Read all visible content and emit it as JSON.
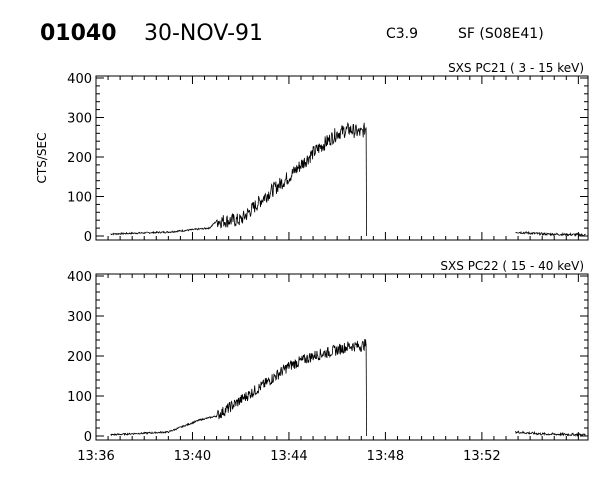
{
  "header": {
    "event_id": "01040",
    "date": "30-NOV-91",
    "goes_class": "C3.9",
    "flare": "SF (S08E41)"
  },
  "chart_data": [
    {
      "type": "line",
      "panel_label": "SXS PC21   (  3 - 15 keV)",
      "ylabel": "CTS/SEC",
      "ylim": [
        0,
        400
      ],
      "yticks": [
        "0",
        "100",
        "200",
        "300",
        "400"
      ],
      "xlim_minutes": [
        0,
        20.4
      ],
      "xticks": [
        "13:36",
        "13:40",
        "13:44",
        "13:48",
        "13:52"
      ],
      "series": [
        {
          "segments": [
            {
              "t": [
                0.6,
                3,
                4.7,
                5.0,
                6.0,
                7.0,
                8.0,
                9.0,
                10.0,
                10.5,
                11.0,
                11.2
              ],
              "cts": [
                5,
                10,
                20,
                38,
                40,
                100,
                150,
                210,
                260,
                270,
                260,
                275
              ],
              "noise_from_t": 5.0,
              "noise_amp": 18
            },
            {
              "t": [
                11.2,
                11.22
              ],
              "cts": [
                275,
                0
              ]
            },
            {
              "t": [
                17.4,
                18.5,
                20.3
              ],
              "cts": [
                10,
                5,
                3
              ],
              "noise_amp": 3
            }
          ]
        }
      ]
    },
    {
      "type": "line",
      "panel_label": "SXS PC22   ( 15 - 40 keV)",
      "ylabel": "",
      "ylim": [
        0,
        400
      ],
      "yticks": [
        "0",
        "100",
        "200",
        "300",
        "400"
      ],
      "xlim_minutes": [
        0,
        20.4
      ],
      "xticks": [
        "13:36",
        "13:40",
        "13:44",
        "13:48",
        "13:52"
      ],
      "series": [
        {
          "segments": [
            {
              "t": [
                0.6,
                3,
                4.3,
                5.0,
                6.0,
                7.0,
                8.0,
                9.0,
                10.0,
                10.5,
                11.0,
                11.2
              ],
              "cts": [
                3,
                10,
                40,
                50,
                90,
                130,
                175,
                200,
                215,
                225,
                225,
                230
              ],
              "noise_from_t": 5.0,
              "noise_amp": 14
            },
            {
              "t": [
                11.2,
                11.22
              ],
              "cts": [
                230,
                0
              ]
            },
            {
              "t": [
                17.4,
                18.5,
                20.3
              ],
              "cts": [
                10,
                5,
                3
              ],
              "noise_amp": 3
            }
          ]
        }
      ]
    }
  ]
}
